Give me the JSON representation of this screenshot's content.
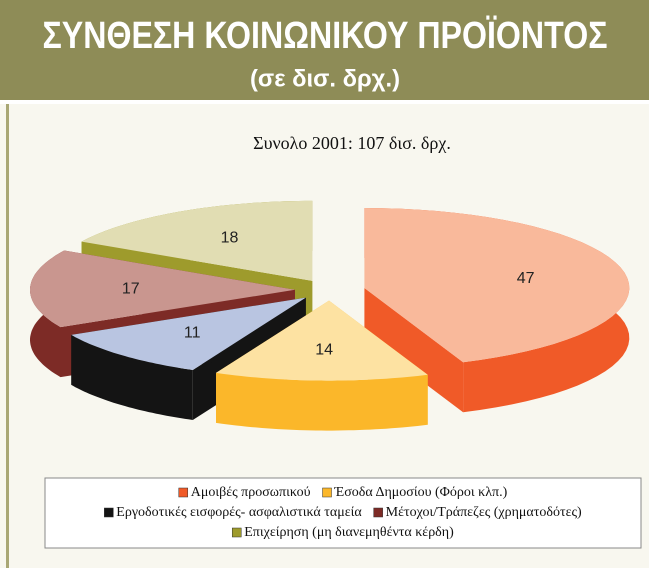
{
  "header": {
    "title": "ΣΥΝΘΕΣΗ ΚΟΙΝΩΝΙΚΟΥ ΠΡΟΪΟΝΤΟΣ",
    "subtitle": "(σε δισ. δρχ.)"
  },
  "chart_data": {
    "type": "pie",
    "title": "Συνολο 2001: 107 δισ. δρχ.",
    "categories": [
      "Αμοιβές προσωπικού",
      "Έσοδα Δημοσίου (Φόροι κλπ.)",
      "Εργοδοτικές εισφορές- ασφαλιστικά ταμεία",
      "Μέτοχοι/Τράπεζες (χρηματοδότες)",
      "Επιχείρηση (μη διανεμηθέντα κέρδη)"
    ],
    "values": [
      47,
      14,
      11,
      17,
      18
    ],
    "colors": [
      "#f9b99b",
      "#fde2a2",
      "#b9c5e1",
      "#c9968f",
      "#e1ddb3"
    ],
    "side_colors": [
      "#f05a28",
      "#fbb72a",
      "#141414",
      "#7d2b26",
      "#9e9b2c"
    ]
  }
}
